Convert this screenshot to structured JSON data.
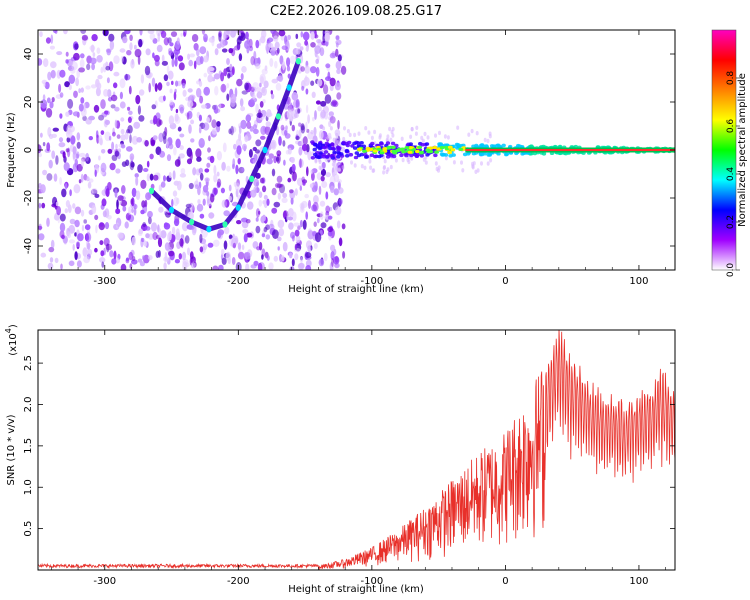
{
  "title": "C2E2.2026.109.08.25.G17",
  "chart_data": [
    {
      "type": "heatmap",
      "name": "spectrogram",
      "xlabel": "Height of straight line (km)",
      "ylabel": "Frequency (Hz)",
      "xlim": [
        -350,
        127
      ],
      "ylim": [
        -50,
        50
      ],
      "xticks": [
        -300,
        -200,
        -100,
        0,
        100
      ],
      "yticks": [
        -40,
        -20,
        0,
        20,
        40
      ],
      "noise_region_x": [
        -350,
        -130
      ],
      "trace": {
        "description": "bright signal track",
        "points": [
          [
            -265,
            -17
          ],
          [
            -250,
            -25
          ],
          [
            -235,
            -30
          ],
          [
            -222,
            -33
          ],
          [
            -210,
            -31
          ],
          [
            -200,
            -24
          ],
          [
            -190,
            -12
          ],
          [
            -180,
            0
          ],
          [
            -170,
            14
          ],
          [
            -162,
            26
          ],
          [
            -155,
            37
          ]
        ]
      },
      "tone": {
        "freq": 0,
        "x_range": [
          -145,
          127
        ]
      },
      "colorbar": {
        "label": "Normalized spectral amplitude",
        "range": [
          0,
          1
        ],
        "ticks": [
          "0.0",
          "0.2",
          "0.4",
          "0.6",
          "0.8"
        ],
        "colors": [
          "#ffffff",
          "#a000ff",
          "#0000ff",
          "#00ffff",
          "#00ff00",
          "#ffff00",
          "#ff8000",
          "#ff0000",
          "#ff00c0"
        ]
      }
    },
    {
      "type": "line",
      "name": "snr",
      "xlabel": "Height of straight line (km)",
      "ylabel": "SNR (10 * v/v)",
      "multiplier": "(x10",
      "multiplier_exp": "4",
      "multiplier_close": ")",
      "xlim": [
        -350,
        127
      ],
      "ylim": [
        0,
        2.9
      ],
      "xticks": [
        -300,
        -200,
        -100,
        0,
        100
      ],
      "yticks": [
        "0.5",
        "1.0",
        "1.5",
        "2.0",
        "2.5"
      ],
      "color": "#e8302a",
      "envelope": [
        [
          -350,
          0.05
        ],
        [
          -140,
          0.05
        ],
        [
          -120,
          0.12
        ],
        [
          -100,
          0.25
        ],
        [
          -80,
          0.45
        ],
        [
          -60,
          0.7
        ],
        [
          -40,
          1.0
        ],
        [
          -20,
          1.3
        ],
        [
          0,
          1.55
        ],
        [
          10,
          1.8
        ],
        [
          20,
          2.05
        ],
        [
          30,
          2.35
        ],
        [
          40,
          2.88
        ],
        [
          50,
          2.5
        ],
        [
          60,
          2.3
        ],
        [
          70,
          2.1
        ],
        [
          80,
          2.05
        ],
        [
          90,
          1.95
        ],
        [
          100,
          2.05
        ],
        [
          110,
          2.2
        ],
        [
          118,
          2.35
        ],
        [
          127,
          2.1
        ]
      ]
    }
  ]
}
